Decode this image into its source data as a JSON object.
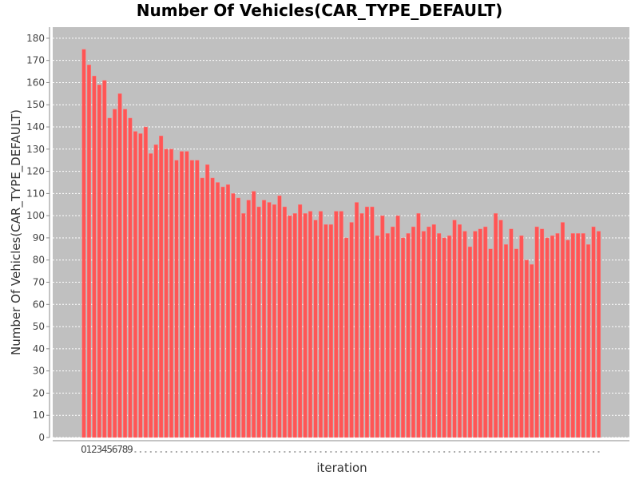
{
  "chart_data": {
    "type": "bar",
    "title": "Number Of Vehicles(CAR_TYPE_DEFAULT)",
    "xlabel": "iteration",
    "ylabel": "Number Of Vehicles(CAR_TYPE_DEFAULT)",
    "ylim": [
      0,
      185
    ],
    "yticks": [
      0,
      10,
      20,
      30,
      40,
      50,
      60,
      70,
      80,
      90,
      100,
      110,
      120,
      130,
      140,
      150,
      160,
      170,
      180
    ],
    "grid": true,
    "legend": "none",
    "bar_color": "#ff5555",
    "plot_background": "#c0c0c0",
    "values": [
      175,
      168,
      163,
      159,
      161,
      144,
      148,
      155,
      148,
      144,
      138,
      137,
      140,
      128,
      132,
      136,
      130,
      130,
      125,
      129,
      129,
      125,
      125,
      117,
      123,
      117,
      115,
      113,
      114,
      110,
      108,
      101,
      107,
      111,
      104,
      107,
      106,
      105,
      109,
      104,
      100,
      101,
      105,
      101,
      102,
      98,
      102,
      96,
      96,
      102,
      102,
      90,
      97,
      106,
      101,
      104,
      104,
      91,
      100,
      92,
      95,
      100,
      90,
      92,
      95,
      101,
      93,
      95,
      96,
      92,
      90,
      91,
      98,
      96,
      93,
      86,
      93,
      94,
      95,
      85,
      101,
      98,
      87,
      94,
      85,
      91,
      80,
      78,
      95,
      94,
      90,
      91,
      92,
      97,
      89,
      92,
      92,
      92,
      87,
      95,
      93
    ]
  }
}
